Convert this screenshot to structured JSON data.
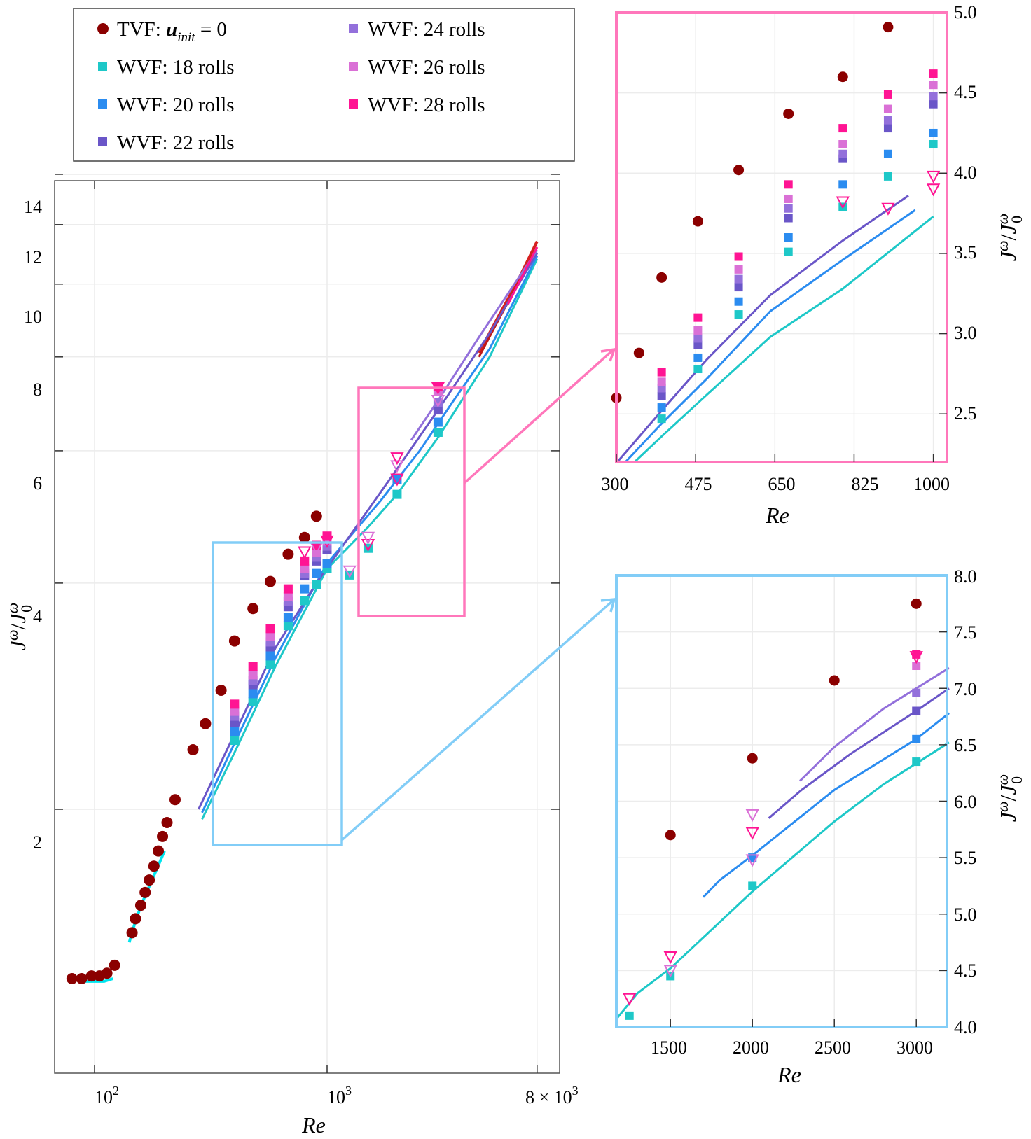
{
  "colors": {
    "TVF": "#8b0000",
    "WVF18": "#1ec8c8",
    "WVF20": "#2b8cf0",
    "WVF22": "#6a56c8",
    "WVF24": "#9370db",
    "WVF26": "#da70d6",
    "WVF28": "#ff1493",
    "pink_frame": "#ff77bb",
    "blue_frame": "#82cdf7",
    "cyan_low": "#00e5ee",
    "red_line": "#d62020"
  },
  "legend": [
    {
      "key": "TVF",
      "marker": "circle",
      "label_main": "TVF: ",
      "label_math": "u",
      "label_sub": "init",
      "label_rest": " = 0"
    },
    {
      "key": "WVF18",
      "marker": "square",
      "label_main": "WVF: 18 rolls"
    },
    {
      "key": "WVF20",
      "marker": "square",
      "label_main": "WVF: 20 rolls"
    },
    {
      "key": "WVF22",
      "marker": "square",
      "label_main": "WVF: 22 rolls"
    },
    {
      "key": "WVF24",
      "marker": "square",
      "label_main": "WVF: 24 rolls"
    },
    {
      "key": "WVF26",
      "marker": "square",
      "label_main": "WVF: 26 rolls"
    },
    {
      "key": "WVF28",
      "marker": "square",
      "label_main": "WVF: 28 rolls"
    }
  ],
  "chart_data": [
    {
      "type": "scatter",
      "xlabel": "Re",
      "ylabel": "Jω/J0ω",
      "xscale": "log",
      "yscale": "log",
      "xlim": [
        75,
        8000
      ],
      "ylim": [
        1.05,
        15.5
      ],
      "grid": true,
      "x_ticks": [
        "10^2",
        "10^3",
        "8 × 10^3"
      ],
      "y_ticks": [
        "2",
        "4",
        "6",
        "8",
        "10",
        "12",
        "14"
      ],
      "series": [
        {
          "name": "TVF",
          "marker": "circle",
          "x": [
            80,
            88,
            97,
            105,
            113,
            122,
            145,
            150,
            158,
            165,
            172,
            180,
            188,
            196,
            205,
            222,
            265,
            300,
            350,
            400,
            480,
            570,
            680,
            800,
            900
          ],
          "y": [
            1.19,
            1.19,
            1.2,
            1.2,
            1.21,
            1.24,
            1.37,
            1.43,
            1.49,
            1.55,
            1.61,
            1.68,
            1.76,
            1.84,
            1.92,
            2.06,
            2.4,
            2.6,
            2.88,
            3.35,
            3.7,
            4.02,
            4.37,
            4.6,
            4.91
          ]
        },
        {
          "name": "WVF: 18 rolls",
          "marker": "square",
          "x": [
            400,
            480,
            570,
            680,
            800,
            900,
            1000,
            1250,
            1500,
            2000,
            3000
          ],
          "y": [
            2.47,
            2.78,
            3.12,
            3.51,
            3.79,
            3.98,
            4.18,
            4.1,
            4.45,
            5.25,
            6.35
          ]
        },
        {
          "name": "WVF: 20 rolls",
          "marker": "square",
          "x": [
            400,
            480,
            570,
            680,
            800,
            900,
            1000,
            2000,
            3000
          ],
          "y": [
            2.54,
            2.85,
            3.2,
            3.6,
            3.93,
            4.12,
            4.25,
            5.5,
            6.55
          ]
        },
        {
          "name": "WVF: 22 rolls",
          "marker": "square",
          "x": [
            400,
            480,
            570,
            680,
            800,
            900,
            1000,
            3000
          ],
          "y": [
            2.61,
            2.93,
            3.29,
            3.72,
            4.09,
            4.28,
            4.43,
            6.8
          ]
        },
        {
          "name": "WVF: 24 rolls",
          "marker": "square",
          "x": [
            400,
            480,
            570,
            680,
            800,
            900,
            1000,
            3000
          ],
          "y": [
            2.66,
            2.97,
            3.34,
            3.78,
            4.12,
            4.33,
            4.48,
            6.96
          ]
        },
        {
          "name": "WVF: 26 rolls",
          "marker": "square",
          "x": [
            400,
            480,
            570,
            680,
            800,
            900,
            1000,
            3000
          ],
          "y": [
            2.7,
            3.02,
            3.4,
            3.84,
            4.18,
            4.4,
            4.55,
            7.2
          ]
        },
        {
          "name": "WVF: 28 rolls",
          "marker": "square",
          "x": [
            400,
            480,
            570,
            680,
            800,
            900,
            1000,
            3000
          ],
          "y": [
            2.76,
            3.1,
            3.48,
            3.93,
            4.28,
            4.49,
            4.62,
            7.3
          ]
        }
      ],
      "insets": [
        {
          "name": "top",
          "xlim": [
            300,
            1000
          ],
          "ylim": [
            2.2,
            5.0
          ],
          "x_ticks": [
            "300",
            "475",
            "650",
            "825",
            "1000"
          ],
          "y_ticks": [
            "2.5",
            "3.0",
            "3.5",
            "4.0",
            "4.5",
            "5.0"
          ],
          "xlabel": "Re",
          "ylabel": "Jω/J0ω"
        },
        {
          "name": "bottom",
          "xlim": [
            1200,
            3200
          ],
          "ylim": [
            4.0,
            8.0
          ],
          "x_ticks": [
            "1500",
            "2000",
            "2500",
            "3000"
          ],
          "y_ticks": [
            "4.0",
            "4.5",
            "5.0",
            "5.5",
            "6.0",
            "6.5",
            "7.0",
            "7.5",
            "8.0"
          ],
          "xlabel": "Re",
          "ylabel": "Jω/J0ω"
        }
      ]
    }
  ],
  "text": {
    "main_xlabel": "Re",
    "main_x_ticks": [
      "10",
      "2",
      "10",
      "3",
      "8 × 10",
      "3"
    ],
    "main_y_ticks": [
      "2",
      "4",
      "6",
      "8",
      "10",
      "12",
      "14"
    ],
    "top_x_ticks": [
      "300",
      "475",
      "650",
      "825",
      "1000"
    ],
    "top_y_ticks": [
      "2.5",
      "3.0",
      "3.5",
      "4.0",
      "4.5",
      "5.0"
    ],
    "top_xlabel": "Re",
    "bot_x_ticks": [
      "1500",
      "2000",
      "2500",
      "3000"
    ],
    "bot_y_ticks": [
      "4.0",
      "4.5",
      "5.0",
      "5.5",
      "6.0",
      "6.5",
      "7.0",
      "7.5",
      "8.0"
    ],
    "bot_xlabel": "Re",
    "ylabel_J": "J",
    "ylabel_omega": "ω",
    "ylabel_slash": "/",
    "ylabel_zero": "0"
  }
}
